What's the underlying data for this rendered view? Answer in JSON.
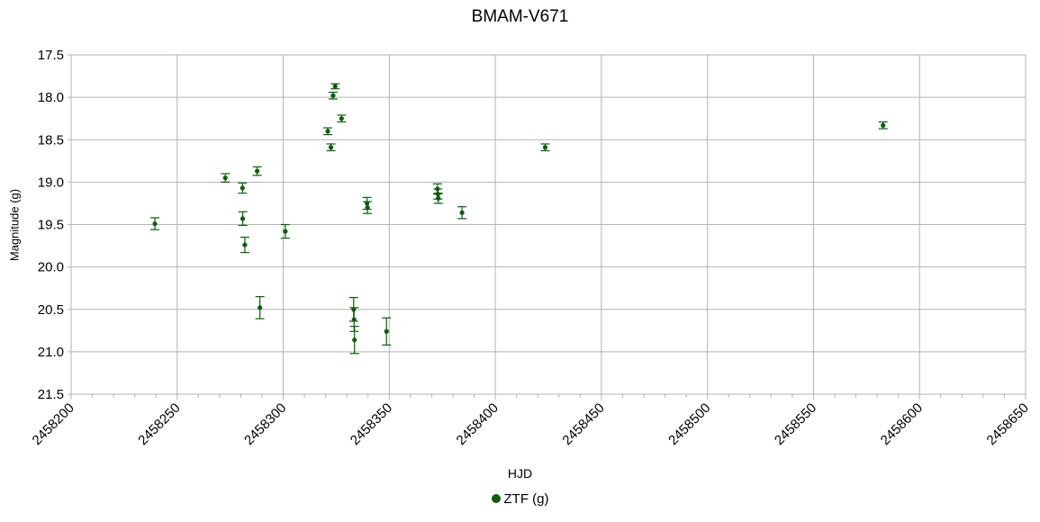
{
  "chart_data": {
    "type": "scatter",
    "title": "BMAM-V671",
    "xlabel": "HJD",
    "ylabel": "Magnitude (g)",
    "xlim": [
      2458200,
      2458650
    ],
    "ylim": [
      17.5,
      21.5
    ],
    "y_inverted": true,
    "grid": true,
    "legend_position": "bottom",
    "x_ticks": [
      "2458200",
      "2458250",
      "2458300",
      "2458350",
      "2458400",
      "2458450",
      "2458500",
      "2458550",
      "2458600",
      "2458650"
    ],
    "y_ticks": [
      "17.5",
      "18.0",
      "18.5",
      "19.0",
      "19.5",
      "20.0",
      "20.5",
      "21.0",
      "21.5"
    ],
    "series": [
      {
        "name": "ZTF (g)",
        "color": "#0b5e0b",
        "points": [
          {
            "x": 2458239.5,
            "y": 19.49,
            "err": 0.07
          },
          {
            "x": 2458272.7,
            "y": 18.95,
            "err": 0.05
          },
          {
            "x": 2458280.8,
            "y": 19.07,
            "err": 0.06
          },
          {
            "x": 2458280.9,
            "y": 19.43,
            "err": 0.08
          },
          {
            "x": 2458281.9,
            "y": 19.74,
            "err": 0.09
          },
          {
            "x": 2458287.7,
            "y": 18.87,
            "err": 0.05
          },
          {
            "x": 2458289.0,
            "y": 20.48,
            "err": 0.13
          },
          {
            "x": 2458301.0,
            "y": 19.58,
            "err": 0.08
          },
          {
            "x": 2458321.0,
            "y": 18.4,
            "err": 0.04
          },
          {
            "x": 2458322.5,
            "y": 18.59,
            "err": 0.04
          },
          {
            "x": 2458323.5,
            "y": 17.98,
            "err": 0.04
          },
          {
            "x": 2458324.5,
            "y": 17.87,
            "err": 0.03
          },
          {
            "x": 2458327.5,
            "y": 18.25,
            "err": 0.04
          },
          {
            "x": 2458333.2,
            "y": 20.5,
            "err": 0.14
          },
          {
            "x": 2458333.4,
            "y": 20.62,
            "err": 0.14
          },
          {
            "x": 2458333.6,
            "y": 20.86,
            "err": 0.16
          },
          {
            "x": 2458339.5,
            "y": 19.25,
            "err": 0.07
          },
          {
            "x": 2458339.7,
            "y": 19.3,
            "err": 0.07
          },
          {
            "x": 2458348.7,
            "y": 20.76,
            "err": 0.16
          },
          {
            "x": 2458372.7,
            "y": 19.08,
            "err": 0.06
          },
          {
            "x": 2458372.9,
            "y": 19.14,
            "err": 0.06
          },
          {
            "x": 2458373.1,
            "y": 19.19,
            "err": 0.06
          },
          {
            "x": 2458384.3,
            "y": 19.36,
            "err": 0.07
          },
          {
            "x": 2458423.5,
            "y": 18.59,
            "err": 0.04
          },
          {
            "x": 2458582.8,
            "y": 18.33,
            "err": 0.04
          }
        ]
      }
    ]
  }
}
